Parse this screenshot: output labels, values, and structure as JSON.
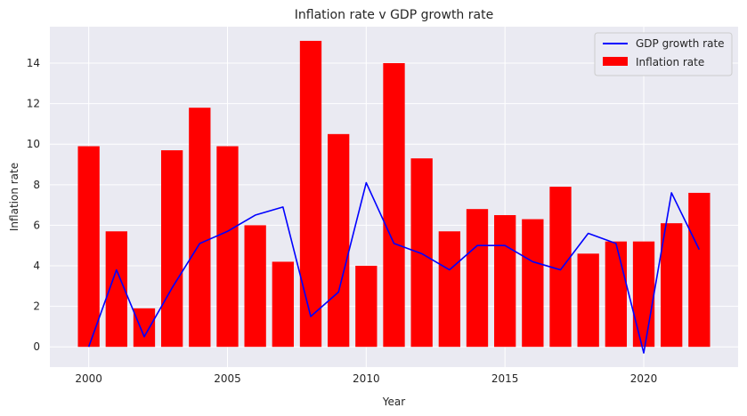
{
  "chart_data": {
    "type": "bar",
    "title": "Inflation rate v GDP growth rate",
    "xlabel": "Year",
    "ylabel": "Inflation rate",
    "x": [
      2000,
      2001,
      2002,
      2003,
      2004,
      2005,
      2006,
      2007,
      2008,
      2009,
      2010,
      2011,
      2012,
      2013,
      2014,
      2015,
      2016,
      2017,
      2018,
      2019,
      2020,
      2021,
      2022
    ],
    "xlim": [
      1998.6,
      2023.4
    ],
    "ylim": [
      -1.0,
      15.8
    ],
    "xticks": [
      2000,
      2005,
      2010,
      2015,
      2020
    ],
    "yticks": [
      0,
      2,
      4,
      6,
      8,
      10,
      12,
      14
    ],
    "grid": true,
    "legend_position": "top-right",
    "series": [
      {
        "name": "GDP growth rate",
        "type": "line",
        "color": "#0000ff",
        "values": [
          0.0,
          3.8,
          0.5,
          2.9,
          5.1,
          5.7,
          6.5,
          6.9,
          1.5,
          2.7,
          8.1,
          5.1,
          4.6,
          3.8,
          5.0,
          5.0,
          4.2,
          3.8,
          5.6,
          5.1,
          -0.3,
          7.6,
          4.8
        ]
      },
      {
        "name": "Inflation rate",
        "type": "bar",
        "color": "#ff0000",
        "values": [
          9.9,
          5.7,
          1.9,
          9.7,
          11.8,
          9.9,
          6.0,
          4.2,
          15.1,
          10.5,
          4.0,
          14.0,
          9.3,
          5.7,
          6.8,
          6.5,
          6.3,
          7.9,
          4.6,
          5.2,
          5.2,
          6.1,
          7.6
        ]
      }
    ]
  }
}
